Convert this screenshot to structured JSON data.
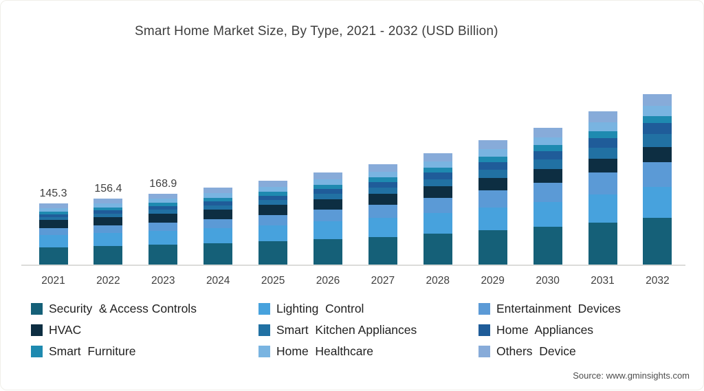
{
  "title": "Smart Home Market Size, By Type, 2021 - 2032 (USD Billion)",
  "source": "Source: www.gminsights.com",
  "chart_data": {
    "type": "bar",
    "stacked": true,
    "title": "Smart Home Market Size, By Type, 2021 - 2032 (USD Billion)",
    "xlabel": "",
    "ylabel": "USD Billion",
    "grid": false,
    "y_axis_shown": false,
    "legend_position": "bottom",
    "categories": [
      "2021",
      "2022",
      "2023",
      "2024",
      "2025",
      "2026",
      "2027",
      "2028",
      "2029",
      "2030",
      "2031",
      "2032"
    ],
    "data_labels": [
      "145.3",
      "156.4",
      "168.9",
      null,
      null,
      null,
      null,
      null,
      null,
      null,
      null,
      null
    ],
    "estimated_totals": [
      145.3,
      156.4,
      168.9,
      182.8,
      199.2,
      218.5,
      238.4,
      264.3,
      295.0,
      325.6,
      363.5,
      405.8
    ],
    "series": [
      {
        "name": "Security & Access Controls",
        "label": "Security  & Access Controls",
        "color": "#156078",
        "values": [
          40.7,
          43.7,
          47.1,
          50.9,
          55.3,
          60.6,
          66.0,
          73.0,
          81.3,
          89.6,
          99.8,
          111.2
        ]
      },
      {
        "name": "Lighting Control",
        "label": "Lighting  Control",
        "color": "#47a2dd",
        "values": [
          29.1,
          31.0,
          33.2,
          35.6,
          38.4,
          41.7,
          45.1,
          49.5,
          54.7,
          59.8,
          66.1,
          73.0
        ]
      },
      {
        "name": "Entertainment Devices",
        "label": "Entertainment  Devices",
        "color": "#5b9ad6",
        "values": [
          16.0,
          17.7,
          19.7,
          22.0,
          24.6,
          27.7,
          31.0,
          35.3,
          40.4,
          45.7,
          52.2,
          59.7
        ]
      },
      {
        "name": "HVAC",
        "label": "HVAC",
        "color": "#0d2e42",
        "values": [
          19.6,
          20.4,
          21.3,
          22.3,
          23.4,
          24.7,
          25.9,
          27.6,
          29.5,
          31.2,
          33.2,
          35.3
        ]
      },
      {
        "name": "Smart Kitchen Appliances",
        "label": "Smart  Kitchen Appliances",
        "color": "#2171a3",
        "values": [
          7.3,
          8.2,
          9.2,
          10.4,
          11.8,
          13.4,
          15.2,
          17.4,
          20.1,
          23.0,
          26.4,
          30.4
        ]
      },
      {
        "name": "Home Appliances",
        "label": "Home  Appliances",
        "color": "#1f5c99",
        "values": [
          6.5,
          7.3,
          8.2,
          9.2,
          10.4,
          11.8,
          13.3,
          15.3,
          17.6,
          20.0,
          23.0,
          26.4
        ]
      },
      {
        "name": "Smart Furniture",
        "label": "Smart  Furniture",
        "color": "#1e8ab0",
        "values": [
          7.3,
          7.7,
          8.2,
          8.8,
          9.5,
          10.2,
          11.0,
          12.0,
          13.2,
          14.4,
          15.9,
          17.4
        ]
      },
      {
        "name": "Home Healthcare",
        "label": "Home  Healthcare",
        "color": "#79b4e1",
        "values": [
          8.0,
          8.7,
          9.4,
          10.3,
          11.3,
          12.5,
          13.8,
          15.4,
          17.3,
          19.2,
          21.6,
          24.3
        ]
      },
      {
        "name": "Others Device",
        "label": "Others  Device",
        "color": "#87abd9",
        "values": [
          10.9,
          11.7,
          12.5,
          13.4,
          14.5,
          15.8,
          17.1,
          18.8,
          20.8,
          22.8,
          25.3,
          28.0
        ]
      }
    ]
  }
}
